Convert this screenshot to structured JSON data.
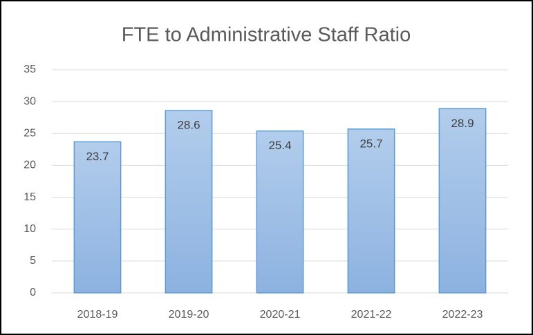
{
  "chart_data": {
    "type": "bar",
    "title": "FTE to Administrative Staff Ratio",
    "categories": [
      "2018-19",
      "2019-20",
      "2020-21",
      "2021-22",
      "2022-23"
    ],
    "values": [
      23.7,
      28.6,
      25.4,
      25.7,
      28.9
    ],
    "color": "#5b9bd5",
    "ylim": [
      0,
      35
    ],
    "yticks": [
      0,
      5,
      10,
      15,
      20,
      25,
      30,
      35
    ],
    "grid": true
  }
}
